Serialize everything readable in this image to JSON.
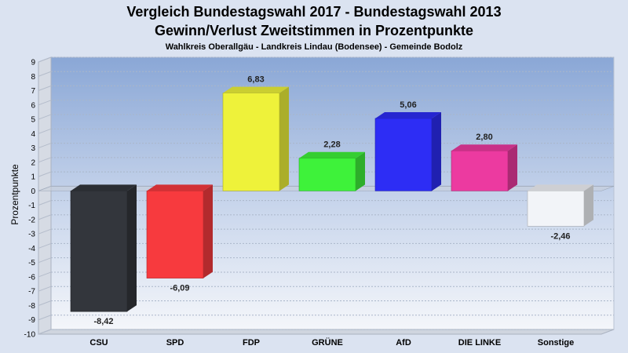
{
  "title_line1": "Vergleich Bundestagswahl 2017 - Bundestagswahl 2013",
  "title_line2": "Gewinn/Verlust Zweitstimmen in Prozentpunkte",
  "subtitle": "Wahlkreis Oberallgäu - Landkreis Lindau (Bodensee) - Gemeinde Bodolz",
  "chart_data": {
    "type": "bar",
    "title": "Vergleich Bundestagswahl 2017 - Bundestagswahl 2013",
    "subtitle": "Gewinn/Verlust Zweitstimmen in Prozentpunkte",
    "ylabel": "Prozentpunkte",
    "xlabel": "",
    "ylim": [
      -10,
      9
    ],
    "yticks": [
      9,
      8,
      7,
      6,
      5,
      4,
      3,
      2,
      1,
      0,
      -1,
      -2,
      -3,
      -4,
      -5,
      -6,
      -7,
      -8,
      -9,
      -10
    ],
    "grid": true,
    "legend": "none",
    "categories": [
      "CSU",
      "SPD",
      "FDP",
      "GRÜNE",
      "AfD",
      "DIE LINKE",
      "Sonstige"
    ],
    "values": [
      -8.42,
      -6.09,
      6.83,
      2.28,
      5.06,
      2.8,
      -2.46
    ],
    "value_labels": [
      "-8,42",
      "-6,09",
      "6,83",
      "2,28",
      "5,06",
      "2,80",
      "-2,46"
    ],
    "colors": [
      "#33363c",
      "#f73a3e",
      "#eef23a",
      "#3ef23a",
      "#2d2df5",
      "#ec3aa0",
      "#f2f4f8"
    ]
  }
}
